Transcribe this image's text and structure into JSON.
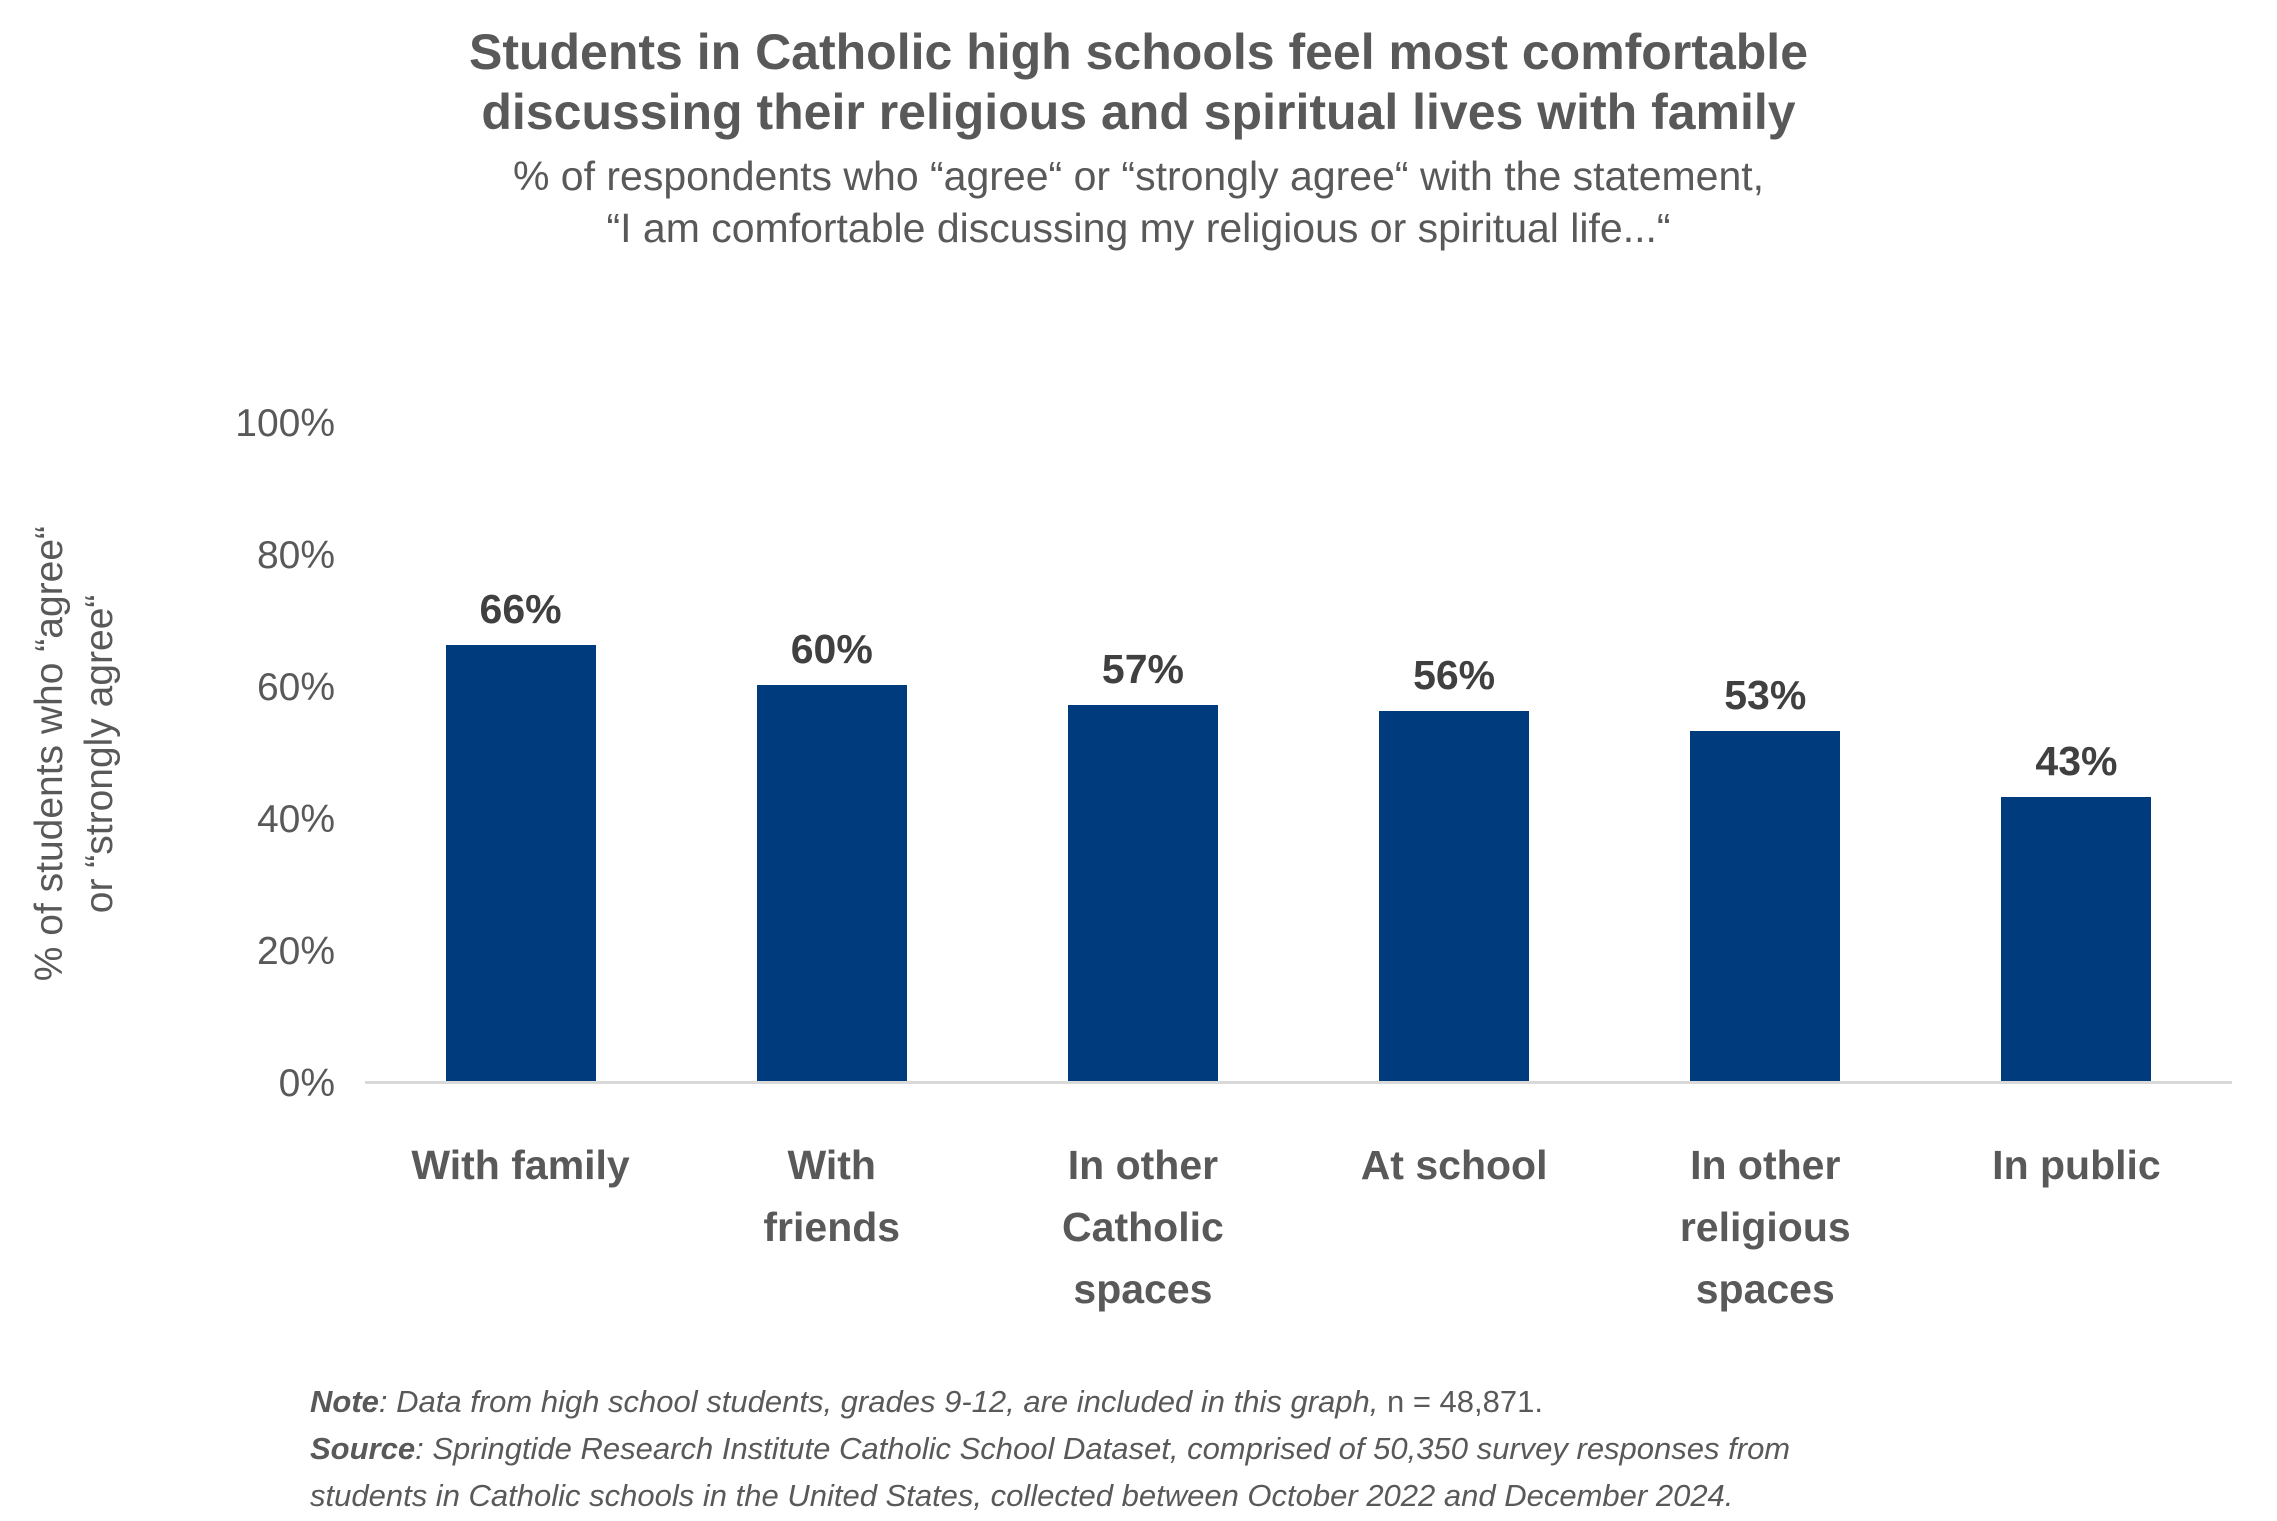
{
  "chart_data": {
    "type": "bar",
    "title": "Students in Catholic high schools feel most comfortable discussing their religious and spiritual lives with family",
    "title_lines": [
      "Students in Catholic high schools feel most comfortable",
      "discussing their religious and spiritual lives with family"
    ],
    "subtitle": "% of respondents who “agree“ or “strongly agree“ with the statement, “I am comfortable discussing my religious or spiritual life...“",
    "subtitle_lines": [
      "% of respondents who “agree“ or “strongly agree“ with the statement,",
      "“I am comfortable discussing my religious or spiritual life...“"
    ],
    "categories": [
      "With family",
      "With friends",
      "In other Catholic spaces",
      "At school",
      "In other religious spaces",
      "In public"
    ],
    "categories_wrapped": [
      "With family",
      "With\nfriends",
      "In other\nCatholic\nspaces",
      "At school",
      "In other\nreligious\nspaces",
      "In public"
    ],
    "values": [
      66,
      60,
      57,
      56,
      53,
      43
    ],
    "value_labels": [
      "66%",
      "60%",
      "57%",
      "56%",
      "53%",
      "43%"
    ],
    "xlabel": "",
    "ylabel": "% of students who “agree“ or “strongly agree“",
    "ylabel_lines": "% of students who “agree“\nor “strongly agree“",
    "yticks": [
      {
        "label": "100%",
        "value": 100
      },
      {
        "label": "80%",
        "value": 80
      },
      {
        "label": "60%",
        "value": 60
      },
      {
        "label": "40%",
        "value": 40
      },
      {
        "label": "20%",
        "value": 20
      },
      {
        "label": "0%",
        "value": 0
      }
    ],
    "ylim": [
      0,
      100
    ],
    "grid": false,
    "legend": "none",
    "bar_color": "#003B7D"
  },
  "colors": {
    "bar_color": "#003B7D",
    "text_gray": "#595959",
    "value_gray": "#404040",
    "axis_line": "#D9D9D9"
  },
  "footnote": {
    "note_label": "Note",
    "note_text_italic": ": Data from high school students, grades 9-12, are included in this graph, ",
    "note_text_upright": "n = 48,871.",
    "source_label": "Source",
    "source_line1": ": Springtide Research Institute Catholic School Dataset, comprised of 50,350 survey responses from",
    "source_line2": "students in Catholic schools in the United States, collected between October 2022 and December 2024."
  }
}
